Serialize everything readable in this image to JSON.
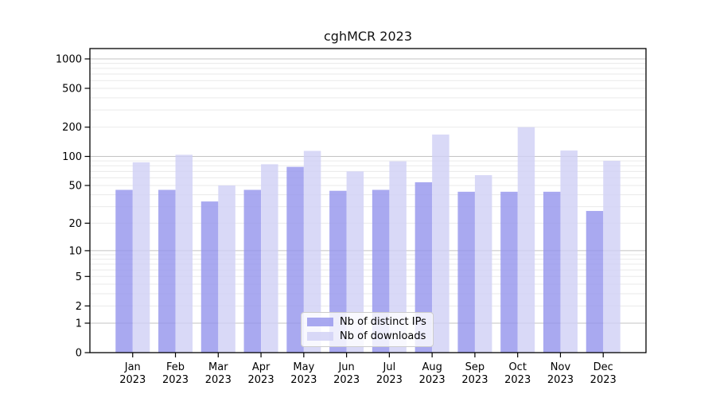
{
  "chart_data": {
    "type": "bar",
    "title": "cghMCR 2023",
    "categories": [
      "Jan",
      "Feb",
      "Mar",
      "Apr",
      "May",
      "Jun",
      "Jul",
      "Aug",
      "Sep",
      "Oct",
      "Nov",
      "Dec"
    ],
    "year_label": "2023",
    "series": [
      {
        "name": "Nb of distinct IPs",
        "color": "#9494ec",
        "values": [
          45,
          45,
          34,
          45,
          78,
          44,
          45,
          54,
          43,
          43,
          43,
          27
        ]
      },
      {
        "name": "Nb of downloads",
        "color": "#d0d0f5",
        "values": [
          87,
          104,
          50,
          83,
          114,
          70,
          89,
          168,
          64,
          200,
          115,
          90
        ]
      }
    ],
    "bar_fill_opacity": 0.8,
    "y_axis": {
      "ticks": [
        0,
        1,
        2,
        5,
        10,
        20,
        50,
        100,
        200,
        500,
        1000
      ],
      "scale": "log10(1+x)",
      "top_value": 1280
    },
    "x_axis": {
      "tick_label_line1": [
        "Jan",
        "Feb",
        "Mar",
        "Apr",
        "May",
        "Jun",
        "Jul",
        "Aug",
        "Sep",
        "Oct",
        "Nov",
        "Dec"
      ],
      "tick_label_line2": "2023"
    },
    "grid": {
      "minor_color": "#eaeaea",
      "major_color": "#c3c3c3",
      "major_at": [
        1,
        10,
        100,
        1000
      ]
    },
    "axis_color": "#000000",
    "legend_position": "lower-center-inside"
  }
}
